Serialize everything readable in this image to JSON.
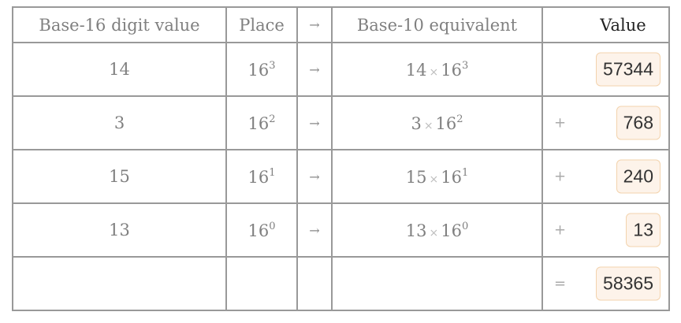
{
  "headers": {
    "digit": "Base-16 digit value",
    "place": "Place",
    "arrow": "→",
    "equiv": "Base-10 equivalent",
    "value": "Value"
  },
  "rows": [
    {
      "digit": "14",
      "base": "16",
      "exp": "3",
      "arrow": "→",
      "times": "×",
      "op": "",
      "value": "57344"
    },
    {
      "digit": "3",
      "base": "16",
      "exp": "2",
      "arrow": "→",
      "times": "×",
      "op": "+",
      "value": "768"
    },
    {
      "digit": "15",
      "base": "16",
      "exp": "1",
      "arrow": "→",
      "times": "×",
      "op": "+",
      "value": "240"
    },
    {
      "digit": "13",
      "base": "16",
      "exp": "0",
      "arrow": "→",
      "times": "×",
      "op": "+",
      "value": "13"
    }
  ],
  "total": {
    "op": "=",
    "value": "58365"
  },
  "colors": {
    "box_bg": "#fdf3ea",
    "box_border": "#f3d3ad"
  }
}
